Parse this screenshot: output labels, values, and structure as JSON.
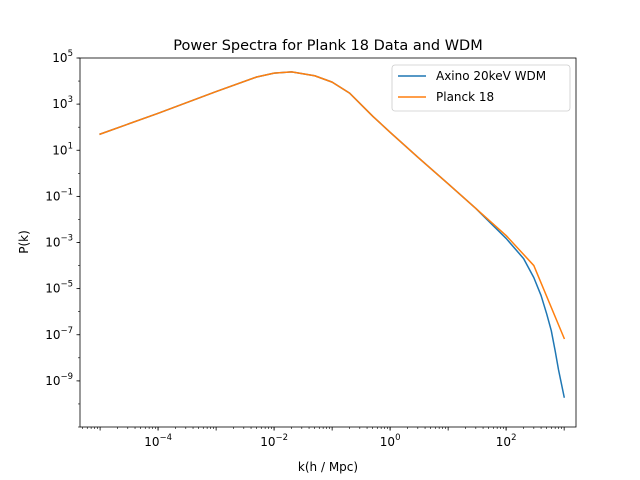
{
  "chart_data": {
    "type": "line",
    "title": "Power Spectra for Plank 18 Data and WDM",
    "xlabel": "k(h / Mpc)",
    "ylabel": "P(k)",
    "xscale": "log",
    "yscale": "log",
    "xlim": [
      4.5e-06,
      1600
    ],
    "ylim": [
      1e-11,
      100000
    ],
    "xticks": [
      {
        "value": 0.0001,
        "base": "10",
        "exp": "−4"
      },
      {
        "value": 0.01,
        "base": "10",
        "exp": "−2"
      },
      {
        "value": 1,
        "base": "10",
        "exp": "0"
      },
      {
        "value": 100,
        "base": "10",
        "exp": "2"
      }
    ],
    "yticks": [
      {
        "value": 1e-09,
        "base": "10",
        "exp": "−9"
      },
      {
        "value": 1e-07,
        "base": "10",
        "exp": "−7"
      },
      {
        "value": 1e-05,
        "base": "10",
        "exp": "−5"
      },
      {
        "value": 0.001,
        "base": "10",
        "exp": "−3"
      },
      {
        "value": 0.1,
        "base": "10",
        "exp": "−1"
      },
      {
        "value": 10,
        "base": "10",
        "exp": "1"
      },
      {
        "value": 1000,
        "base": "10",
        "exp": "3"
      },
      {
        "value": 100000,
        "base": "10",
        "exp": "5"
      }
    ],
    "grid": false,
    "legend_position": "top-right",
    "series": [
      {
        "name": "Axino 20keV WDM",
        "color": "#1f77b4",
        "points": [
          [
            1e-05,
            50
          ],
          [
            0.0001,
            400
          ],
          [
            0.001,
            3500
          ],
          [
            0.005,
            15000
          ],
          [
            0.01,
            22000
          ],
          [
            0.02,
            25000
          ],
          [
            0.05,
            17000
          ],
          [
            0.1,
            9000
          ],
          [
            0.2,
            3000
          ],
          [
            0.5,
            300
          ],
          [
            1,
            60
          ],
          [
            3,
            5
          ],
          [
            10,
            0.35
          ],
          [
            30,
            0.03
          ],
          [
            100,
            0.0015
          ],
          [
            200,
            0.0002
          ],
          [
            300,
            3e-05
          ],
          [
            400,
            5e-06
          ],
          [
            500,
            8e-07
          ],
          [
            600,
            1.5e-07
          ],
          [
            700,
            2e-08
          ],
          [
            800,
            3e-09
          ],
          [
            1000,
            2e-10
          ]
        ]
      },
      {
        "name": "Planck 18",
        "color": "#ff7f0e",
        "points": [
          [
            1e-05,
            50
          ],
          [
            0.0001,
            400
          ],
          [
            0.001,
            3500
          ],
          [
            0.005,
            15000
          ],
          [
            0.01,
            22000
          ],
          [
            0.02,
            25000
          ],
          [
            0.05,
            17000
          ],
          [
            0.1,
            9000
          ],
          [
            0.2,
            3000
          ],
          [
            0.5,
            300
          ],
          [
            1,
            60
          ],
          [
            3,
            5
          ],
          [
            10,
            0.35
          ],
          [
            30,
            0.03
          ],
          [
            100,
            0.002
          ],
          [
            300,
            0.0001
          ],
          [
            1000,
            7e-08
          ]
        ]
      }
    ]
  }
}
